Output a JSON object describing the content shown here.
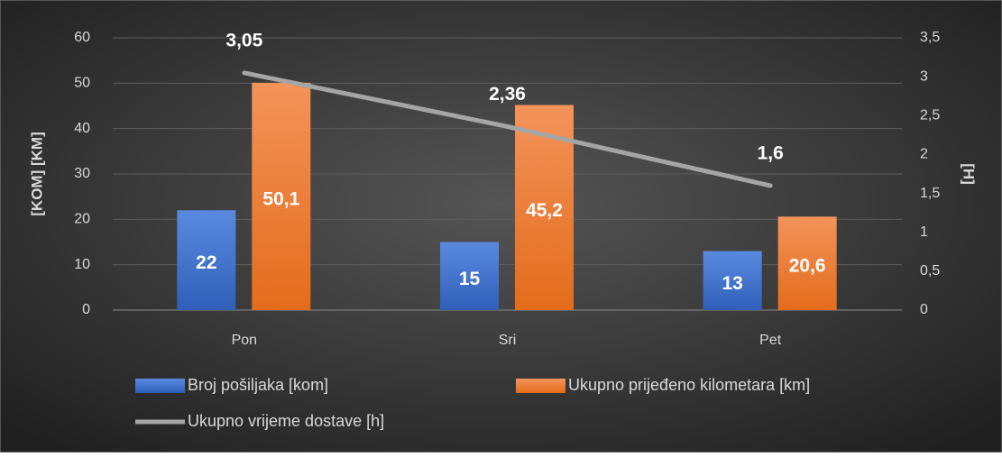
{
  "chart_data": {
    "type": "bar",
    "categories": [
      "Pon",
      "Sri",
      "Pet"
    ],
    "series": [
      {
        "name": "Broj pošiljaka [kom]",
        "color": "#4472c4",
        "values": [
          22,
          15,
          13
        ]
      },
      {
        "name": "Ukupno prijeđeno kilometara [km]",
        "color": "#ed7d31",
        "values": [
          50.1,
          45.2,
          20.6
        ],
        "value_labels": [
          "50,1",
          "45,2",
          "20,6"
        ]
      },
      {
        "name": "Ukupno vrijeme dostave [h]",
        "color": "#a5a5a5",
        "type": "line",
        "axis": "y2",
        "values": [
          3.05,
          2.36,
          1.6
        ],
        "value_labels": [
          "3,05",
          "2,36",
          "1,6"
        ]
      }
    ],
    "ylabel": "[KOM] [KM]",
    "y2label": "[H]",
    "ylim": [
      0,
      60
    ],
    "yticks": [
      0,
      10,
      20,
      30,
      40,
      50,
      60
    ],
    "y2lim": [
      0,
      3.5
    ],
    "y2ticks": [
      0,
      {
        "value": 0.5,
        "label": "0,5"
      },
      1,
      {
        "value": 1.5,
        "label": "1,5"
      },
      2,
      {
        "value": 2.5,
        "label": "2,5"
      },
      3,
      {
        "value": 3.5,
        "label": "3,5"
      }
    ],
    "grid": true,
    "legend": "bottom"
  }
}
